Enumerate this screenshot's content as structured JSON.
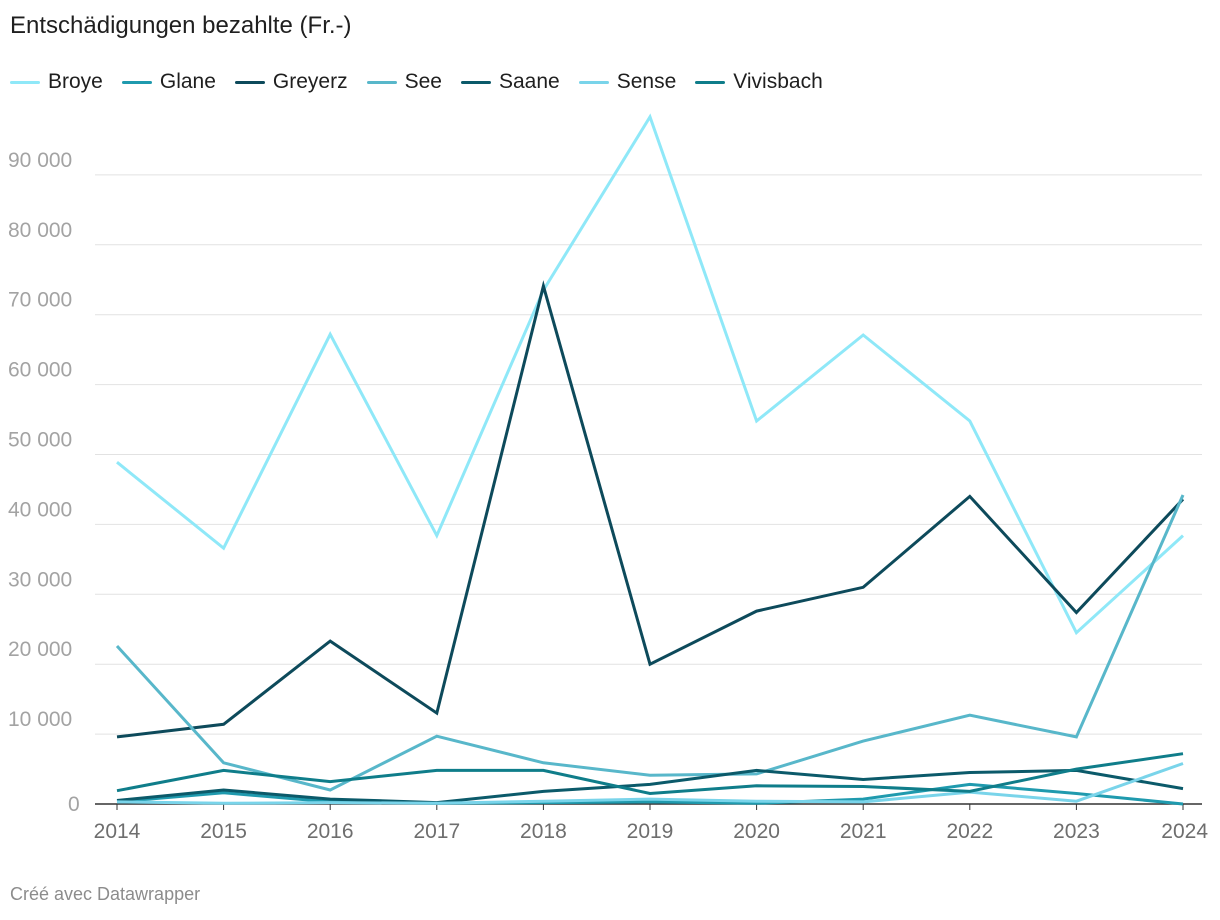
{
  "chart_data": {
    "type": "line",
    "title": "Entschädigungen bezahlte (Fr.-)",
    "xlabel": "",
    "ylabel": "",
    "x": [
      2014,
      2015,
      2016,
      2017,
      2018,
      2019,
      2020,
      2021,
      2022,
      2023,
      2024
    ],
    "ylim": [
      0,
      99000
    ],
    "yticks": [
      0,
      10000,
      20000,
      30000,
      40000,
      50000,
      60000,
      70000,
      80000,
      90000
    ],
    "ytick_labels": [
      "0",
      "10 000",
      "20 000",
      "30 000",
      "40 000",
      "50 000",
      "60 000",
      "70 000",
      "80 000",
      "90 000"
    ],
    "grid": true,
    "legend_position": "top-left",
    "series": [
      {
        "name": "Broye",
        "color": "#8fe8f8",
        "values": [
          48900,
          36600,
          67200,
          38400,
          73500,
          98300,
          54800,
          67100,
          54800,
          24500,
          38400
        ]
      },
      {
        "name": "Glane",
        "color": "#1f9aae",
        "values": [
          300,
          1600,
          300,
          100,
          200,
          300,
          100,
          700,
          2800,
          1500,
          0
        ]
      },
      {
        "name": "Greyerz",
        "color": "#0d4a5b",
        "values": [
          9600,
          11400,
          23300,
          13000,
          74100,
          20000,
          27600,
          31000,
          44000,
          27400,
          43600
        ]
      },
      {
        "name": "See",
        "color": "#58b7ca",
        "values": [
          22600,
          5900,
          2000,
          9700,
          5900,
          4100,
          4300,
          9000,
          12700,
          9600,
          44200
        ]
      },
      {
        "name": "Saane",
        "color": "#0b5a6a",
        "values": [
          500,
          2000,
          700,
          200,
          1800,
          2800,
          4800,
          3500,
          4500,
          4800,
          2200
        ]
      },
      {
        "name": "Sense",
        "color": "#79d4ea",
        "values": [
          300,
          100,
          200,
          100,
          400,
          700,
          400,
          300,
          1700,
          400,
          5800
        ]
      },
      {
        "name": "Vivisbach",
        "color": "#0f7d8a",
        "values": [
          1900,
          4800,
          3200,
          4800,
          4800,
          1500,
          2600,
          2500,
          1800,
          5000,
          7200
        ]
      }
    ]
  },
  "footer": "Créé avec Datawrapper"
}
